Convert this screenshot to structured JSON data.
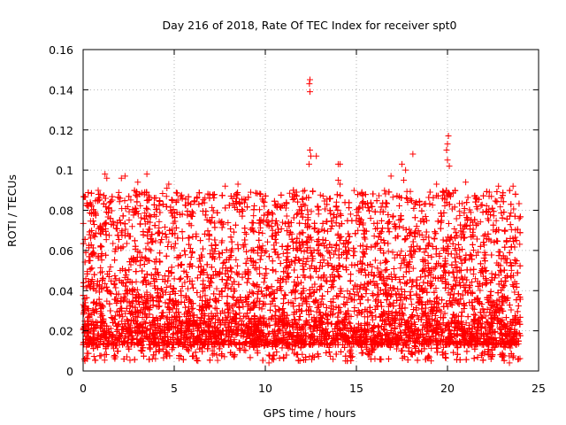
{
  "chart_data": {
    "type": "scatter",
    "title": "Day 216 of 2018, Rate Of TEC Index for receiver spt0",
    "xlabel": "GPS time / hours",
    "ylabel": "ROTI / TECUs",
    "xlim": [
      0,
      25
    ],
    "ylim": [
      0,
      0.16
    ],
    "xticks": [
      "0",
      "5",
      "10",
      "15",
      "20",
      "25"
    ],
    "yticks": [
      "0",
      "0.02",
      "0.04",
      "0.06",
      "0.08",
      "0.1",
      "0.12",
      "0.14",
      "0.16"
    ],
    "xtick_values": [
      0,
      5,
      10,
      15,
      20,
      25
    ],
    "ytick_values": [
      0,
      0.02,
      0.04,
      0.06,
      0.08,
      0.1,
      0.12,
      0.14,
      0.16
    ],
    "grid": true,
    "marker": "+",
    "color": "#ff0000",
    "data_range_x": [
      0,
      24
    ],
    "typical_band": [
      0.005,
      0.095
    ],
    "points": [
      [
        12.45,
        0.145
      ],
      [
        12.42,
        0.143
      ],
      [
        12.45,
        0.139
      ],
      [
        12.45,
        0.11
      ],
      [
        12.5,
        0.107
      ],
      [
        12.4,
        0.103
      ],
      [
        12.8,
        0.107
      ],
      [
        14.0,
        0.103
      ],
      [
        14.1,
        0.103
      ],
      [
        14.0,
        0.095
      ],
      [
        14.1,
        0.093
      ],
      [
        17.5,
        0.103
      ],
      [
        18.1,
        0.108
      ],
      [
        17.7,
        0.1
      ],
      [
        17.6,
        0.095
      ],
      [
        20.05,
        0.117
      ],
      [
        20.0,
        0.113
      ],
      [
        19.95,
        0.11
      ],
      [
        20.0,
        0.105
      ],
      [
        20.1,
        0.102
      ],
      [
        1.2,
        0.098
      ],
      [
        1.3,
        0.096
      ],
      [
        2.1,
        0.096
      ],
      [
        2.3,
        0.097
      ],
      [
        3.5,
        0.098
      ],
      [
        3.0,
        0.094
      ],
      [
        4.7,
        0.093
      ],
      [
        4.6,
        0.091
      ],
      [
        7.8,
        0.092
      ],
      [
        8.5,
        0.093
      ],
      [
        9.2,
        0.089
      ],
      [
        16.9,
        0.097
      ],
      [
        21.0,
        0.094
      ],
      [
        22.8,
        0.092
      ],
      [
        23.6,
        0.092
      ],
      [
        19.4,
        0.093
      ],
      [
        0.1,
        0.005
      ],
      [
        3.8,
        0.006
      ],
      [
        6.3,
        0.005
      ],
      [
        10.2,
        0.004
      ],
      [
        14.4,
        0.005
      ],
      [
        19.1,
        0.005
      ],
      [
        23.4,
        0.004
      ],
      [
        23.9,
        0.006
      ]
    ]
  }
}
